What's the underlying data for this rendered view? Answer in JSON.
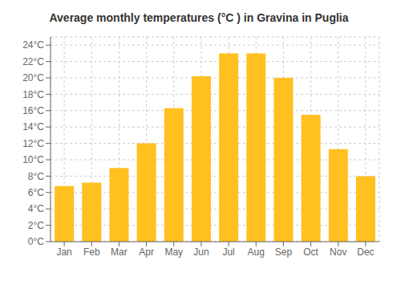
{
  "chart_data": {
    "type": "bar",
    "title": "Average monthly temperatures (°C ) in Gravina in Puglia",
    "categories": [
      "Jan",
      "Feb",
      "Mar",
      "Apr",
      "May",
      "Jun",
      "Jul",
      "Aug",
      "Sep",
      "Oct",
      "Nov",
      "Dec"
    ],
    "values": [
      6.8,
      7.2,
      9.0,
      12.0,
      16.3,
      20.2,
      23.0,
      23.0,
      20.0,
      15.5,
      11.3,
      8.0
    ],
    "color": "#FFC020",
    "ylim": [
      0,
      25
    ],
    "yticks": [
      {
        "value": 0,
        "label": "0°C"
      },
      {
        "value": 2,
        "label": "2°C"
      },
      {
        "value": 4,
        "label": "4°C"
      },
      {
        "value": 6,
        "label": "6°C"
      },
      {
        "value": 8,
        "label": "8°C"
      },
      {
        "value": 10,
        "label": "10°C"
      },
      {
        "value": 12,
        "label": "12°C"
      },
      {
        "value": 14,
        "label": "14°C"
      },
      {
        "value": 16,
        "label": "16°C"
      },
      {
        "value": 18,
        "label": "18°C"
      },
      {
        "value": 20,
        "label": "20°C"
      },
      {
        "value": 22,
        "label": "22°C"
      },
      {
        "value": 24,
        "label": "24°C"
      }
    ],
    "grid": true
  }
}
